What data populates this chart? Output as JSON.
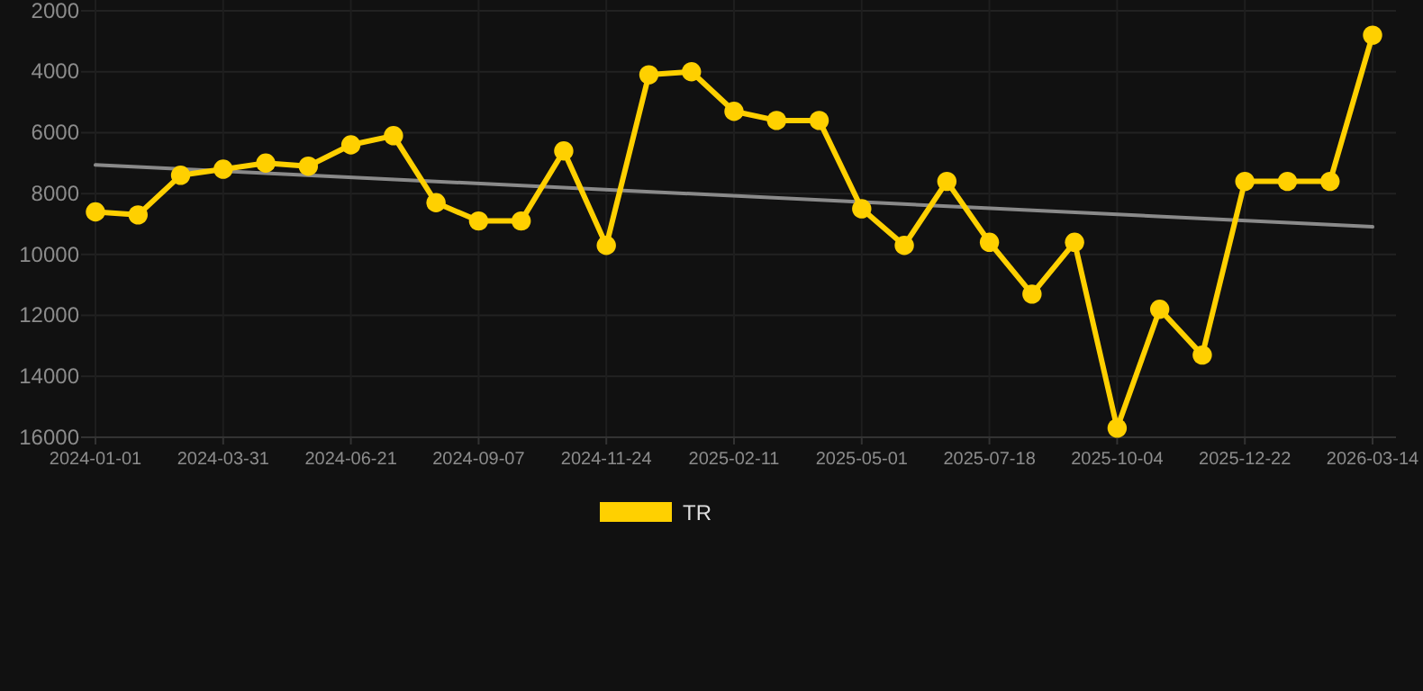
{
  "chart_data": {
    "type": "line",
    "categories": [
      "2024-01-01",
      null,
      null,
      "2024-03-31",
      null,
      null,
      "2024-06-21",
      null,
      null,
      "2024-09-07",
      null,
      null,
      "2024-11-24",
      null,
      null,
      "2025-02-11",
      null,
      null,
      "2025-05-01",
      null,
      null,
      "2025-07-18",
      null,
      null,
      "2025-10-04",
      null,
      null,
      "2025-12-22",
      null,
      null,
      "2026-03-14"
    ],
    "series": [
      {
        "name": "TR",
        "color": "#ffd000",
        "marker": "circle",
        "values": [
          8600,
          8700,
          7400,
          7200,
          7000,
          7100,
          6400,
          6100,
          8300,
          8900,
          8900,
          6600,
          9700,
          4100,
          4000,
          5300,
          5600,
          5600,
          8500,
          9700,
          7600,
          9600,
          11300,
          9600,
          15700,
          11800,
          13300,
          7600,
          7600,
          7600,
          2800
        ]
      },
      {
        "type": "line",
        "color": "#8a8a8a",
        "marker": "none",
        "values": [
          7060,
          null,
          null,
          null,
          null,
          null,
          null,
          null,
          null,
          null,
          null,
          null,
          null,
          null,
          null,
          null,
          null,
          null,
          null,
          null,
          null,
          null,
          null,
          null,
          null,
          null,
          null,
          null,
          null,
          null,
          9090
        ]
      }
    ],
    "ylim": [
      16000,
      2000
    ],
    "yticks": [
      2000,
      4000,
      6000,
      8000,
      10000,
      12000,
      14000,
      16000
    ],
    "grid": true,
    "legend": "bottom",
    "line_style": "solid"
  }
}
